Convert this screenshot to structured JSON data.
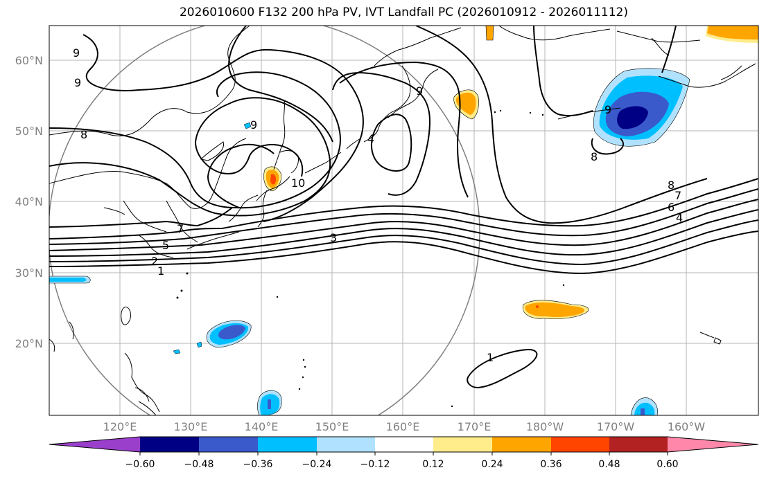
{
  "title": "2026010600 F132 200 hPa PV, IVT Landfall PC (2026010912 - 2026011112)",
  "map": {
    "lat_labels": [
      "20°N",
      "30°N",
      "40°N",
      "50°N",
      "60°N"
    ],
    "lon_labels": [
      "120°E",
      "130°E",
      "140°E",
      "150°E",
      "160°E",
      "170°E",
      "180°W",
      "170°W",
      "160°W"
    ],
    "contour_labels": [
      "9",
      "9",
      "8",
      "9",
      "9",
      "10",
      "4",
      "9",
      "8",
      "8",
      "7",
      "6",
      "4",
      "7",
      "5",
      "2",
      "1",
      "3",
      "1"
    ]
  },
  "colorbar": {
    "ticks": [
      "−0.60",
      "−0.48",
      "−0.36",
      "−0.24",
      "−0.12",
      "0.12",
      "0.24",
      "0.36",
      "0.48",
      "0.60"
    ],
    "colors": [
      "#9a3fcc",
      "#000085",
      "#3a5acc",
      "#00bfff",
      "#b0e2ff",
      "#ffffff",
      "#ffec8b",
      "#ffa500",
      "#ff4500",
      "#b22222",
      "#ff88aa"
    ]
  }
}
